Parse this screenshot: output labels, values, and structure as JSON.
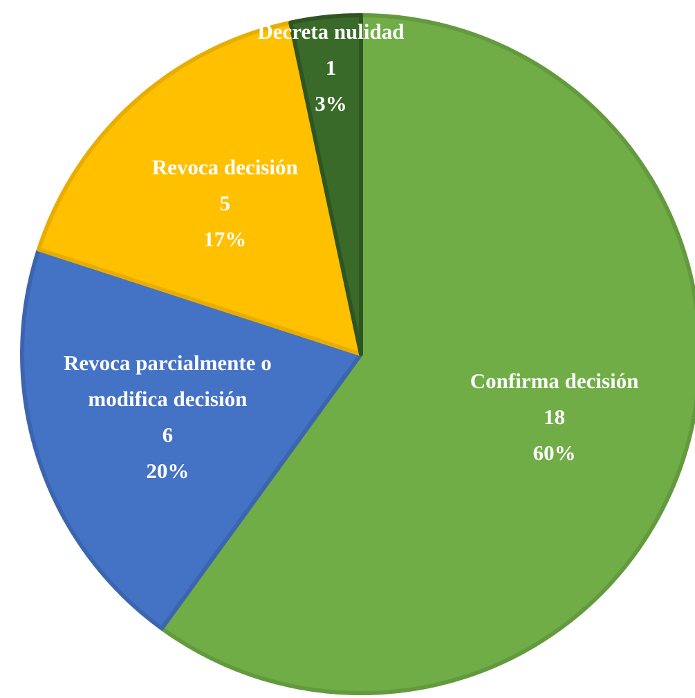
{
  "chart_data": {
    "type": "pie",
    "categories": [
      "Confirma decisión",
      "Revoca parcialmente o modifica decisión",
      "Revoca decisión",
      "Decreta nulidad"
    ],
    "values": [
      18,
      6,
      5,
      1
    ],
    "percents": [
      60,
      20,
      17,
      3
    ],
    "percent_labels": [
      "60%",
      "20%",
      "17%",
      "3%"
    ],
    "colors": [
      "#70ad47",
      "#4472c4",
      "#ffc000",
      "#3a6a2a"
    ],
    "strokes": [
      "#639a3e",
      "#3c65b0",
      "#e8ad00",
      "#2f5522"
    ]
  }
}
